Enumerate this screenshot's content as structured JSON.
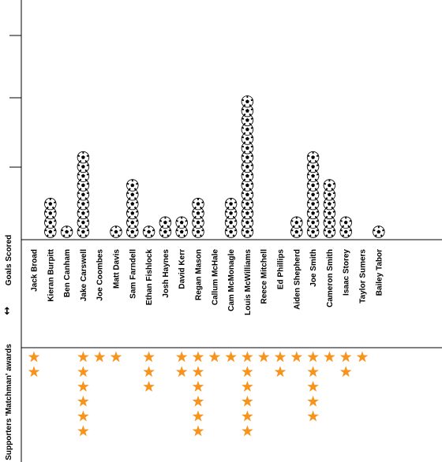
{
  "chart_data": {
    "type": "pictogram",
    "players": [
      "Jack Broad",
      "Kieran Burpitt",
      "Ben Canham",
      "Jake Carswell",
      "Joe Coombes",
      "Matt Davis",
      "Sam Farndell",
      "Ethan Fishlock",
      "Josh Haynes",
      "David Kerr",
      "Regan Mason",
      "Callum McHale",
      "Cam McMonagle",
      "Louis McWilliams",
      "Reece Mitchell",
      "Ed Phillips",
      "Aiden Shepherd",
      "Joe Smith",
      "Cameron Smith",
      "Isaac Storey",
      "Taylor Sumers",
      "Bailey Tabor"
    ],
    "series": [
      {
        "name": "Goals Scored",
        "icon": "football-icon",
        "values": [
          0,
          4,
          1,
          9,
          0,
          1,
          6,
          1,
          2,
          2,
          4,
          0,
          4,
          15,
          0,
          0,
          2,
          9,
          6,
          2,
          0,
          1
        ]
      },
      {
        "name": "Supporters 'Matchman' awards",
        "icon": "star-icon",
        "values": [
          2,
          0,
          0,
          6,
          1,
          1,
          0,
          3,
          0,
          2,
          6,
          1,
          1,
          6,
          1,
          2,
          1,
          5,
          1,
          2,
          1,
          0
        ]
      }
    ],
    "divider_arrow": "↕",
    "colors": {
      "star": "#F7941D",
      "axis": "#000000",
      "ball_fill": "#ffffff",
      "ball_patch": "#000000"
    }
  }
}
